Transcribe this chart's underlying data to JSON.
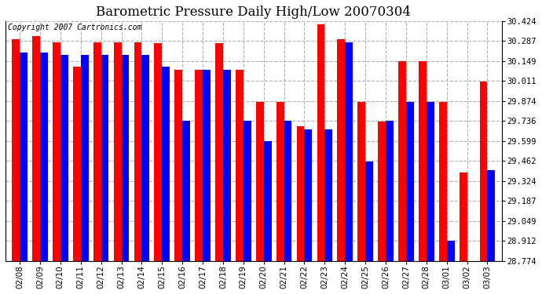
{
  "title": "Barometric Pressure Daily High/Low 20070304",
  "copyright": "Copyright 2007 Cartronics.com",
  "dates": [
    "02/08",
    "02/09",
    "02/10",
    "02/11",
    "02/12",
    "02/13",
    "02/14",
    "02/15",
    "02/16",
    "02/17",
    "02/18",
    "02/19",
    "02/20",
    "02/21",
    "02/22",
    "02/23",
    "02/24",
    "02/25",
    "02/26",
    "02/27",
    "02/28",
    "03/01",
    "03/02",
    "03/03"
  ],
  "highs": [
    30.3,
    30.32,
    30.28,
    30.11,
    30.28,
    30.28,
    30.28,
    30.27,
    30.09,
    30.09,
    30.27,
    30.09,
    29.87,
    29.87,
    29.7,
    30.4,
    30.3,
    29.87,
    29.73,
    30.15,
    30.15,
    29.87,
    29.38,
    30.01
  ],
  "lows": [
    30.21,
    30.21,
    30.19,
    30.19,
    30.19,
    30.19,
    30.19,
    30.11,
    29.74,
    30.09,
    30.09,
    29.74,
    29.6,
    29.74,
    29.68,
    29.68,
    30.28,
    29.46,
    29.74,
    29.87,
    29.87,
    28.91,
    28.77,
    29.4
  ],
  "high_color": "#ff0000",
  "low_color": "#0000ff",
  "bg_color": "#ffffff",
  "plot_bg_color": "#ffffff",
  "grid_color": "#b0b0b0",
  "ymin": 28.774,
  "ymax": 30.424,
  "yticks": [
    30.424,
    30.287,
    30.149,
    30.011,
    29.874,
    29.736,
    29.599,
    29.462,
    29.324,
    29.187,
    29.049,
    28.912,
    28.774
  ],
  "title_fontsize": 12,
  "tick_fontsize": 7.5,
  "copyright_fontsize": 7,
  "bar_width": 0.38
}
